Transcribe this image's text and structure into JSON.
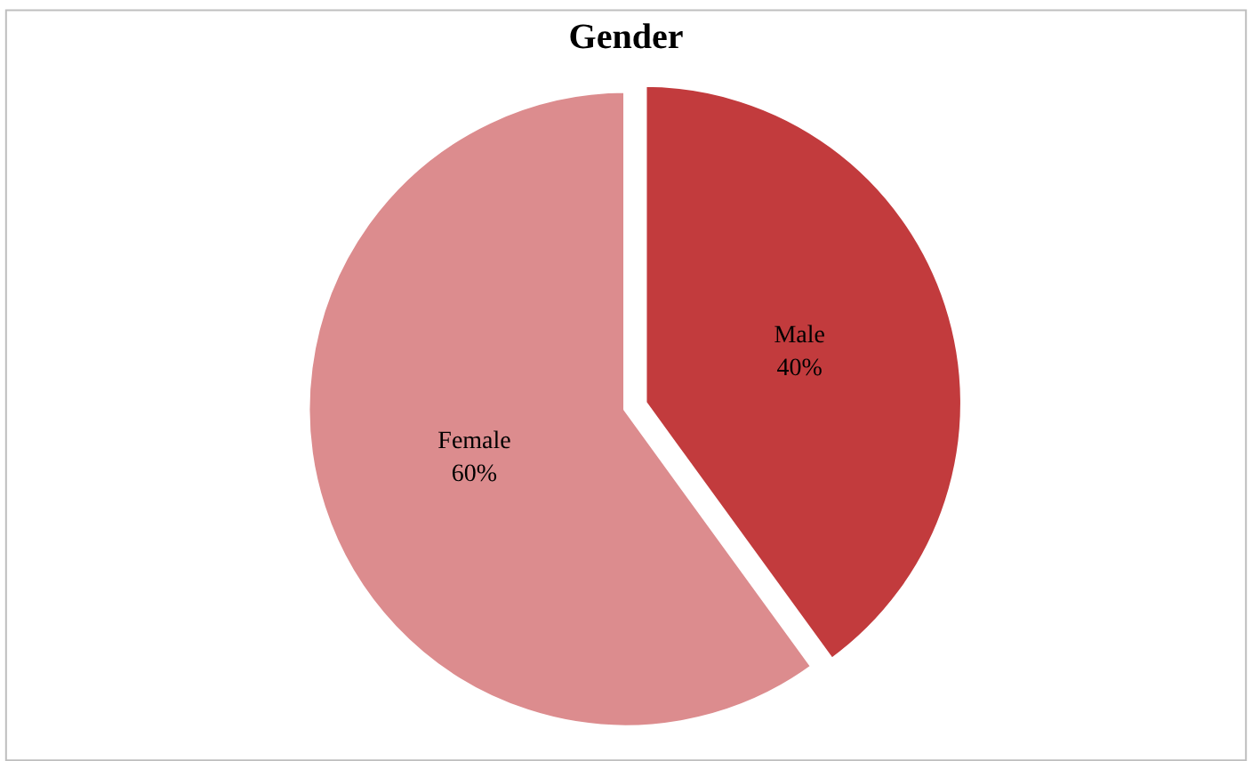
{
  "chart_data": {
    "type": "pie",
    "title": "Gender",
    "categories": [
      "Male",
      "Female"
    ],
    "values": [
      40,
      60
    ],
    "value_labels": [
      "40%",
      "60%"
    ],
    "colors": [
      "#c23b3d",
      "#dc8c8e"
    ],
    "legend": false
  }
}
